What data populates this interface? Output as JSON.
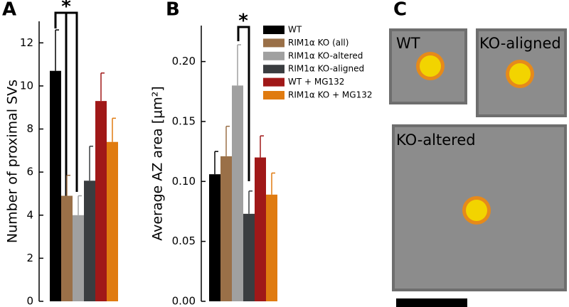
{
  "panels": [
    "A",
    "B",
    "C"
  ],
  "chart_data": [
    {
      "type": "bar",
      "ylabel": "Number of proximal SVs",
      "ylim": [
        0,
        13
      ],
      "yticks": [
        0,
        2,
        4,
        6,
        8,
        10,
        12
      ],
      "annotation": "*",
      "series": [
        {
          "color": "#000000",
          "values": [
            10.7
          ],
          "errors": [
            1.9
          ]
        },
        {
          "color": "#9a7048",
          "values": [
            4.9
          ],
          "errors": [
            0.95
          ]
        },
        {
          "color": "#a0a0a0",
          "values": [
            4.0
          ],
          "errors": [
            0.9
          ]
        },
        {
          "color": "#3a3d40",
          "values": [
            5.6
          ],
          "errors": [
            1.6
          ]
        },
        {
          "color": "#a01818",
          "values": [
            9.3
          ],
          "errors": [
            1.3
          ]
        },
        {
          "color": "#e07b10",
          "values": [
            7.4
          ],
          "errors": [
            1.1
          ]
        }
      ]
    },
    {
      "type": "bar",
      "ylabel": "Average AZ area [µm²]",
      "ylim": [
        0,
        0.23
      ],
      "yticks": [
        {
          "value": 0,
          "label": "0.00"
        },
        {
          "value": 0.05,
          "label": "0.05"
        },
        {
          "value": 0.1,
          "label": "0.10"
        },
        {
          "value": 0.15,
          "label": "0.15"
        },
        {
          "value": 0.2,
          "label": "0.20"
        }
      ],
      "annotation": "*",
      "series": [
        {
          "name": "WT",
          "color": "#000000",
          "values": [
            0.106
          ],
          "errors": [
            0.019
          ]
        },
        {
          "name": "RIM1α KO (all)",
          "color": "#9a7048",
          "values": [
            0.121
          ],
          "errors": [
            0.025
          ]
        },
        {
          "name": "RIM1α KO-altered",
          "color": "#a0a0a0",
          "values": [
            0.18
          ],
          "errors": [
            0.034
          ]
        },
        {
          "name": "RIM1α KO-aligned",
          "color": "#3a3d40",
          "values": [
            0.073
          ],
          "errors": [
            0.019
          ]
        },
        {
          "name": "WT + MG132",
          "color": "#a01818",
          "values": [
            0.12
          ],
          "errors": [
            0.018
          ]
        },
        {
          "name": "RIM1α KO + MG132",
          "color": "#e07b10",
          "values": [
            0.089
          ],
          "errors": [
            0.018
          ]
        }
      ]
    }
  ],
  "diagram": {
    "boxes": [
      "WT",
      "KO-aligned",
      "KO-altered"
    ]
  }
}
